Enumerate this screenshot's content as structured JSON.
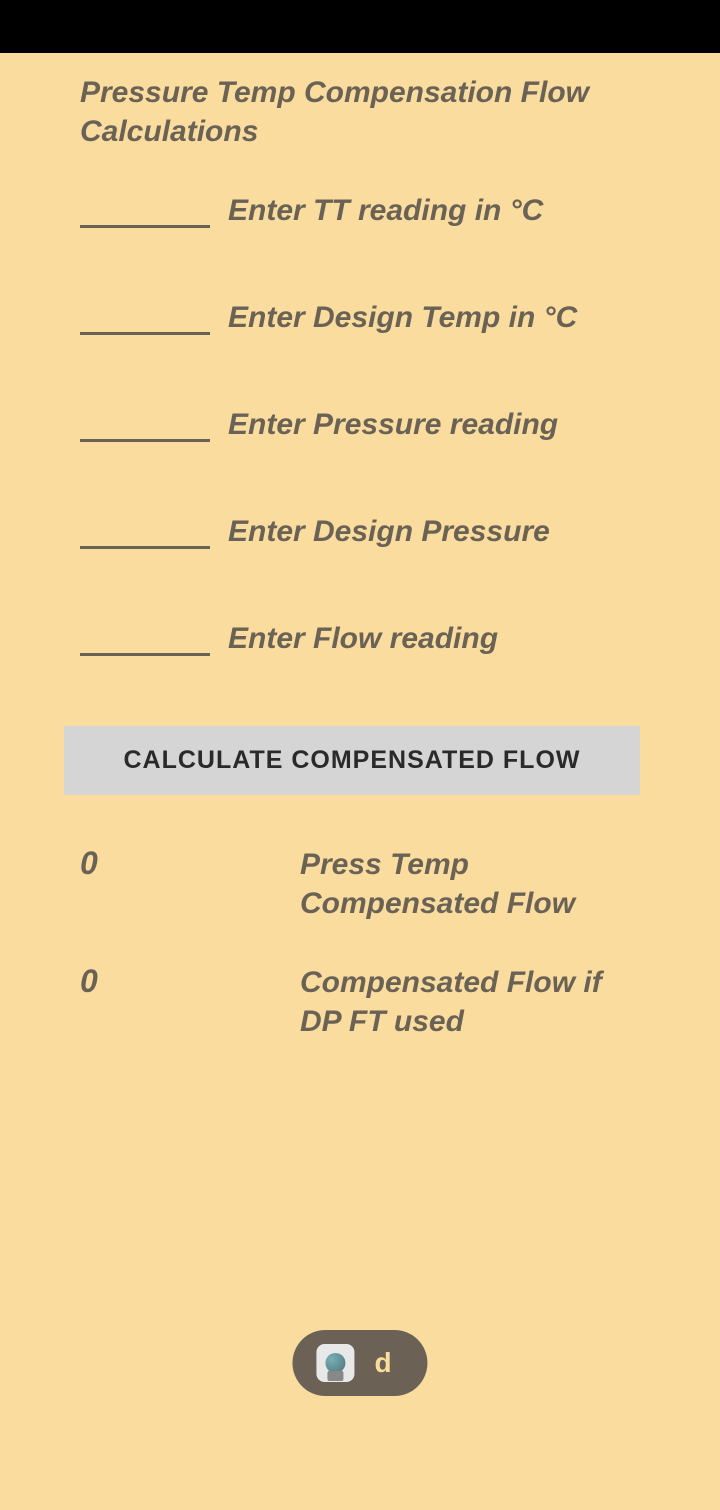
{
  "title": "Pressure Temp Compensation Flow Calculations",
  "inputs": [
    {
      "label": "Enter TT reading in °C",
      "value": ""
    },
    {
      "label": "Enter Design Temp in °C",
      "value": ""
    },
    {
      "label": "Enter Pressure reading",
      "value": ""
    },
    {
      "label": "Enter Design Pressure",
      "value": ""
    },
    {
      "label": "Enter Flow reading",
      "value": ""
    }
  ],
  "button": {
    "label": "CALCULATE COMPENSATED FLOW"
  },
  "results": [
    {
      "value": "0",
      "label": "Press Temp Compensated Flow"
    },
    {
      "value": "0",
      "label": "Compensated Flow if DP FT used"
    }
  ],
  "pill": {
    "text": "d"
  },
  "colors": {
    "background": "#fadc9e",
    "text": "#6b6256",
    "button_bg": "#d5d5d5",
    "pill_bg": "#6b6154",
    "status_bar": "#000000"
  }
}
